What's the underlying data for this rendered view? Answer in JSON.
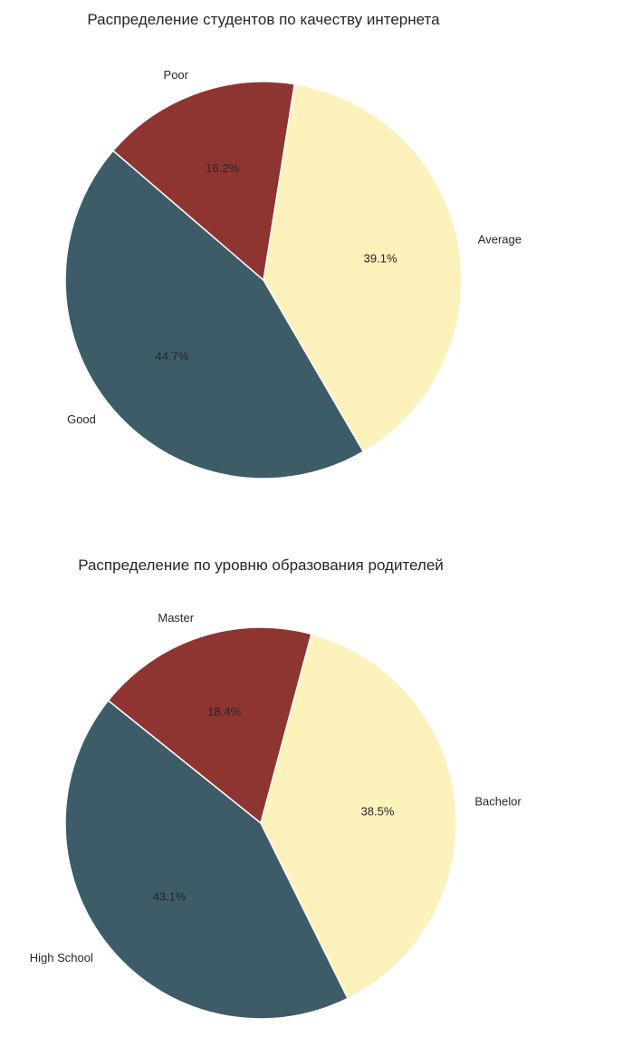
{
  "chart_data": [
    {
      "type": "pie",
      "title": "Распределение студентов по качеству интернета",
      "categories": [
        "Average",
        "Good",
        "Poor"
      ],
      "values": [
        39.1,
        44.7,
        16.2
      ],
      "labels": [
        "39.1%",
        "44.7%",
        "16.2%"
      ],
      "colors": [
        "#fdf1bc",
        "#3e5c67",
        "#8e3532"
      ]
    },
    {
      "type": "pie",
      "title": "Распределение по уровню образования родителей",
      "categories": [
        "Bachelor",
        "High School",
        "Master"
      ],
      "values": [
        38.5,
        43.1,
        18.4
      ],
      "labels": [
        "38.5%",
        "43.1%",
        "18.4%"
      ],
      "colors": [
        "#fdf1bc",
        "#3e5c67",
        "#8e3532"
      ]
    }
  ]
}
